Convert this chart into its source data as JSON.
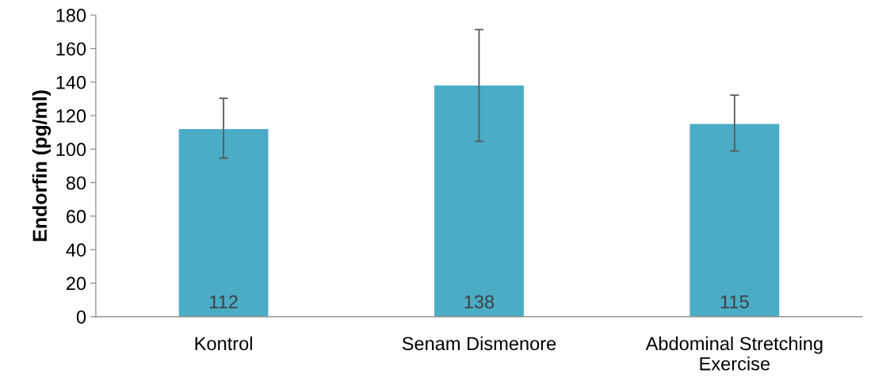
{
  "chart_data": {
    "type": "bar",
    "ylabel": "Endorfin (pg/ml)",
    "categories": [
      "Kontrol",
      "Senam Dismenore",
      "Abdominal Stretching Exercise"
    ],
    "values": [
      112,
      138,
      115
    ],
    "color": "#4bacc6",
    "errors": [
      [
        94.6,
        130.3
      ],
      [
        104.7,
        171.3
      ],
      [
        98.9,
        132.2
      ]
    ],
    "ylim": [
      0,
      180
    ],
    "yticks": [
      0,
      20,
      40,
      60,
      80,
      100,
      120,
      140,
      160,
      180
    ],
    "data_labels": true,
    "grid": false,
    "legend": false
  }
}
